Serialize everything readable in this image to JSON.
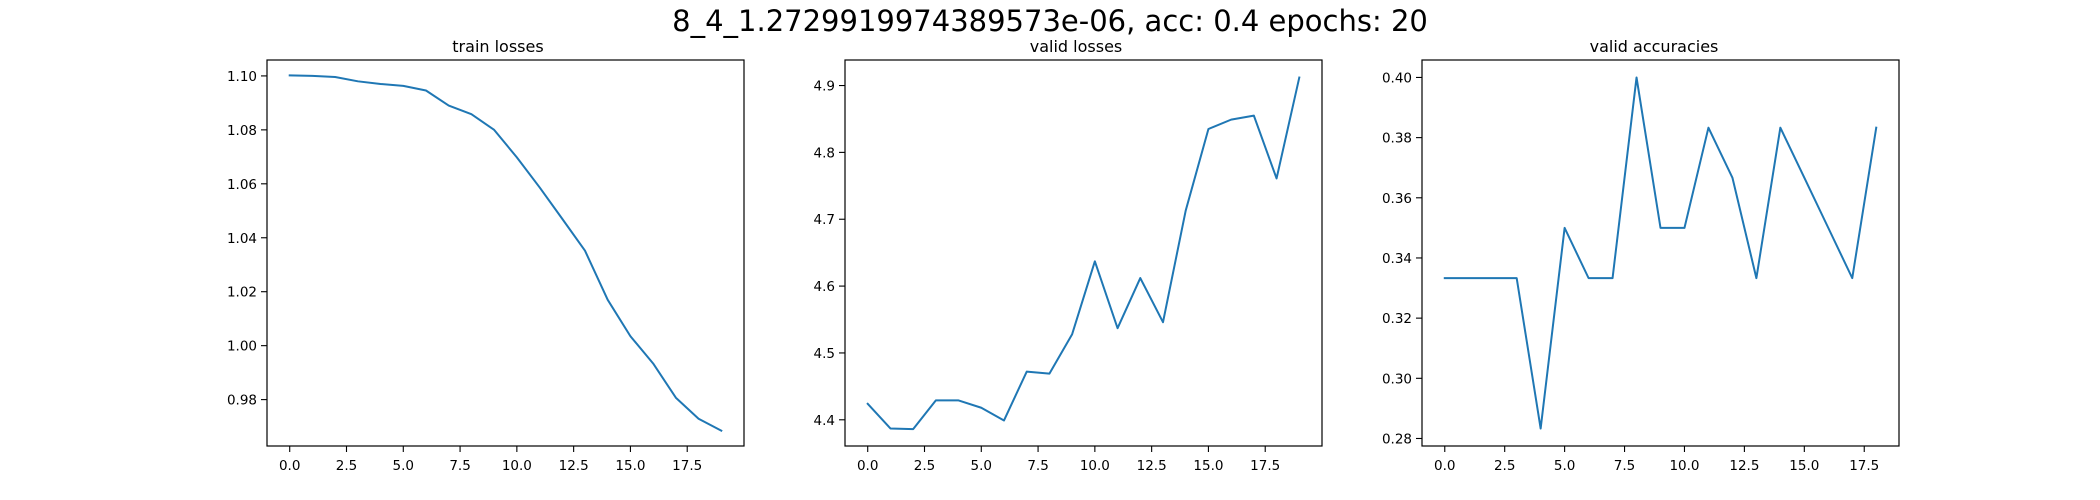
{
  "figure": {
    "suptitle": "8_4_1.2729919974389573e-06, acc: 0.4 epochs: 20"
  },
  "chart_data": [
    {
      "type": "line",
      "title": "train losses",
      "xlabel": "",
      "ylabel": "",
      "color": "#1f77b4",
      "grid": false,
      "x": [
        0,
        1,
        2,
        3,
        4,
        5,
        6,
        7,
        8,
        9,
        10,
        11,
        12,
        13,
        14,
        15,
        16,
        17,
        18,
        19
      ],
      "values": [
        1.1002,
        1.1,
        1.0996,
        1.098,
        1.097,
        1.0963,
        1.0946,
        1.089,
        1.0858,
        1.08,
        1.0698,
        1.0587,
        1.047,
        1.0352,
        1.017,
        1.0035,
        0.9934,
        0.9807,
        0.9729,
        0.9685
      ],
      "xlim": [
        -1,
        20
      ],
      "ylim": [
        0.9628,
        1.1059
      ],
      "xticks": [
        0.0,
        2.5,
        5.0,
        7.5,
        10.0,
        12.5,
        15.0,
        17.5
      ],
      "xtick_labels": [
        "0.0",
        "2.5",
        "5.0",
        "7.5",
        "10.0",
        "12.5",
        "15.0",
        "17.5"
      ],
      "yticks": [
        0.98,
        1.0,
        1.02,
        1.04,
        1.06,
        1.08,
        1.1
      ],
      "ytick_labels": [
        "0.98",
        "1.00",
        "1.02",
        "1.04",
        "1.06",
        "1.08",
        "1.10"
      ]
    },
    {
      "type": "line",
      "title": "valid losses",
      "xlabel": "",
      "ylabel": "",
      "color": "#1f77b4",
      "grid": false,
      "x": [
        0,
        1,
        2,
        3,
        4,
        5,
        6,
        7,
        8,
        9,
        10,
        11,
        12,
        13,
        14,
        15,
        16,
        17,
        18,
        19
      ],
      "values": [
        4.424,
        4.387,
        4.386,
        4.429,
        4.429,
        4.418,
        4.399,
        4.472,
        4.469,
        4.528,
        4.637,
        4.537,
        4.612,
        4.546,
        4.713,
        4.835,
        4.849,
        4.855,
        4.761,
        4.912
      ],
      "xlim": [
        -1,
        20
      ],
      "ylim": [
        4.3608,
        4.9382
      ],
      "xticks": [
        0.0,
        2.5,
        5.0,
        7.5,
        10.0,
        12.5,
        15.0,
        17.5
      ],
      "xtick_labels": [
        "0.0",
        "2.5",
        "5.0",
        "7.5",
        "10.0",
        "12.5",
        "15.0",
        "17.5"
      ],
      "yticks": [
        4.4,
        4.5,
        4.6,
        4.7,
        4.8,
        4.9
      ],
      "ytick_labels": [
        "4.4",
        "4.5",
        "4.6",
        "4.7",
        "4.8",
        "4.9"
      ]
    },
    {
      "type": "line",
      "title": "valid accuracies",
      "xlabel": "",
      "ylabel": "",
      "color": "#1f77b4",
      "grid": false,
      "x": [
        0,
        1,
        2,
        3,
        4,
        5,
        6,
        7,
        8,
        9,
        10,
        11,
        12,
        13,
        14,
        15,
        16,
        17,
        18
      ],
      "values": [
        0.3333,
        0.3333,
        0.3333,
        0.3333,
        0.2833,
        0.35,
        0.3333,
        0.3333,
        0.4,
        0.35,
        0.35,
        0.3833,
        0.3667,
        0.3333,
        0.3833,
        0.3667,
        0.35,
        0.3333,
        0.3833
      ],
      "xlim": [
        -0.95,
        18.95
      ],
      "ylim": [
        0.2775,
        0.4058
      ],
      "xticks": [
        0.0,
        2.5,
        5.0,
        7.5,
        10.0,
        12.5,
        15.0,
        17.5
      ],
      "xtick_labels": [
        "0.0",
        "2.5",
        "5.0",
        "7.5",
        "10.0",
        "12.5",
        "15.0",
        "17.5"
      ],
      "yticks": [
        0.28,
        0.3,
        0.32,
        0.34,
        0.36,
        0.38,
        0.4
      ],
      "ytick_labels": [
        "0.28",
        "0.30",
        "0.32",
        "0.34",
        "0.36",
        "0.38",
        "0.40"
      ]
    }
  ]
}
